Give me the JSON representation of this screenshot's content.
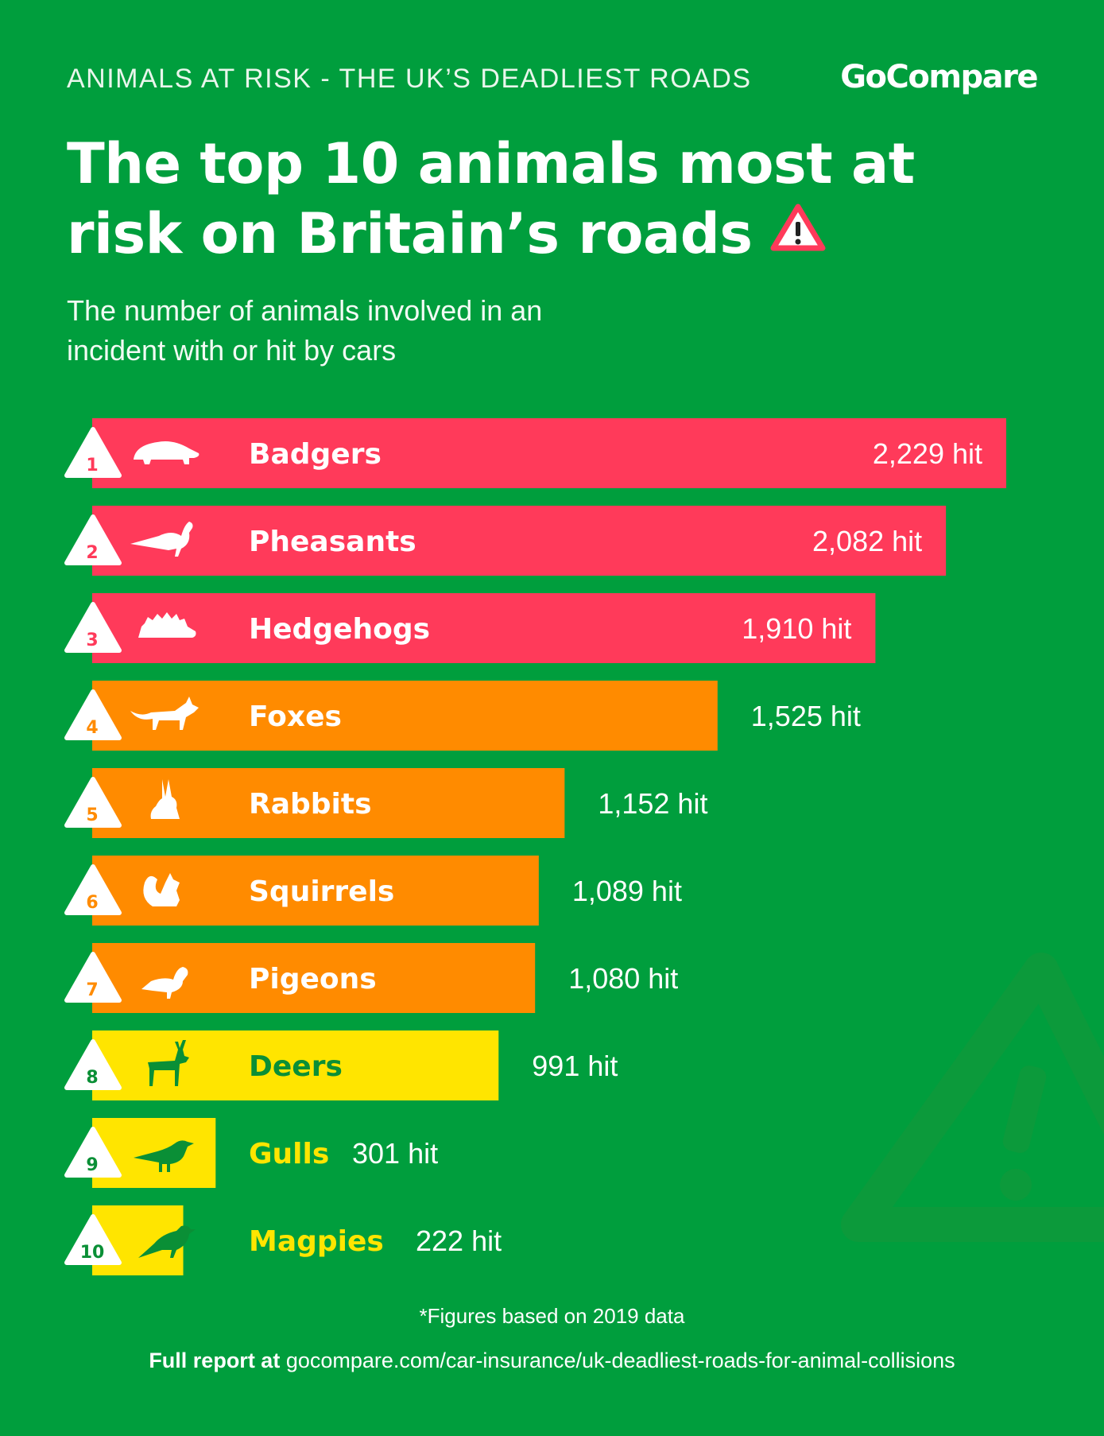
{
  "header": {
    "kicker": "ANIMALS AT RISK - THE UK’S DEADLIEST ROADS",
    "brand": "GoCompare",
    "title_line1": "The top 10 animals most at",
    "title_line2": "risk on Britain’s roads",
    "subtitle_line1": "The number of animals involved in an",
    "subtitle_line2": "incident with or hit by cars"
  },
  "colors": {
    "background": "#009e3d",
    "tier_high": "#ff3a5a",
    "tier_mid": "#ff8b00",
    "tier_low": "#ffe500",
    "text_light": "#ffffff",
    "text_green": "#0a8f36"
  },
  "chart_data": {
    "type": "bar",
    "orientation": "horizontal",
    "value_suffix": " hit",
    "categories": [
      "Badgers",
      "Pheasants",
      "Hedgehogs",
      "Foxes",
      "Rabbits",
      "Squirrels",
      "Pigeons",
      "Deers",
      "Gulls",
      "Magpies"
    ],
    "values": [
      2229,
      2082,
      1910,
      1525,
      1152,
      1089,
      1080,
      991,
      301,
      222
    ],
    "value_labels": [
      "2,229 hit",
      "2,082 hit",
      "1,910 hit",
      "1,525 hit",
      "1,152 hit",
      "1,089 hit",
      "1,080 hit",
      "991 hit",
      "301 hit",
      "222 hit"
    ],
    "ranks": [
      "1",
      "2",
      "3",
      "4",
      "5",
      "6",
      "7",
      "8",
      "9",
      "10"
    ],
    "tiers": [
      "high",
      "high",
      "high",
      "mid",
      "mid",
      "mid",
      "mid",
      "low",
      "low",
      "low"
    ],
    "icons": [
      "badger-icon",
      "pheasant-icon",
      "hedgehog-icon",
      "fox-icon",
      "rabbit-icon",
      "squirrel-icon",
      "pigeon-icon",
      "deer-icon",
      "gull-icon",
      "magpie-icon"
    ],
    "title": "The top 10 animals most at risk on Britain’s roads",
    "xlabel": "",
    "ylabel": ""
  },
  "footer": {
    "footnote": "*Figures based on 2019 data",
    "report_prefix": "Full report at",
    "report_url": "gocompare.com/car-insurance/uk-deadliest-roads-for-animal-collisions"
  }
}
